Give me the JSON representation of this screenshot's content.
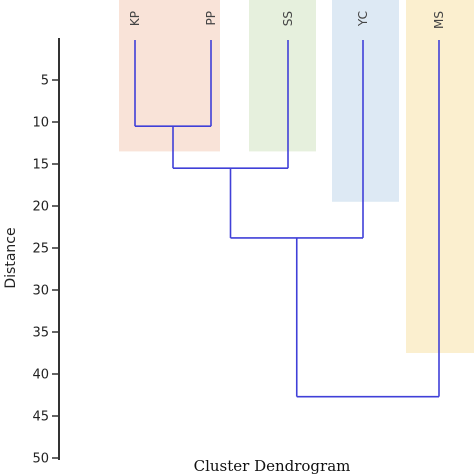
{
  "chart_data": {
    "type": "dendrogram",
    "title": "Cluster Dendrogram",
    "ylabel": "Distance",
    "ylim": [
      0,
      50
    ],
    "yticks": [
      5,
      10,
      15,
      20,
      25,
      30,
      35,
      40,
      45,
      50
    ],
    "leaves": [
      {
        "label": "KP",
        "band_color": "#f9e3d8",
        "band_height": 13.5
      },
      {
        "label": "PP",
        "band_color": "#f9e3d8",
        "band_height": 13.5
      },
      {
        "label": "SS",
        "band_color": "#e6f0dd",
        "band_height": 13.5
      },
      {
        "label": "YC",
        "band_color": "#dde9f4",
        "band_height": 19.5
      },
      {
        "label": "MS",
        "band_color": "#fbefcf",
        "band_height": 37.5
      }
    ],
    "merges": [
      {
        "left": "KP",
        "right": "PP",
        "height": 10.5
      },
      {
        "left": "KP+PP",
        "right": "SS",
        "height": 15.5
      },
      {
        "left": "KP+PP+SS",
        "right": "YC",
        "height": 23.8
      },
      {
        "left": "KP+PP+SS+YC",
        "right": "MS",
        "height": 42.7
      }
    ],
    "colors": {
      "branch": "#4040d8",
      "axis": "#333333"
    }
  }
}
